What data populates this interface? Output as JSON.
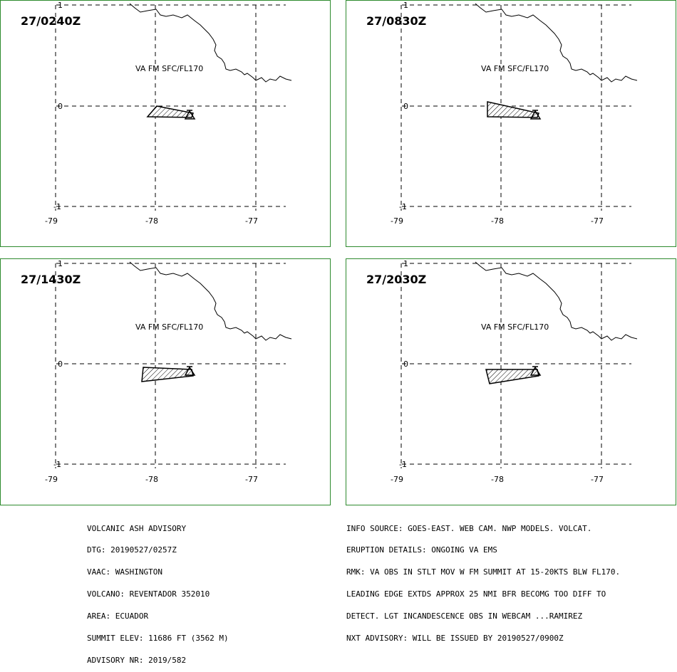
{
  "panels": [
    {
      "time": "27/0240Z",
      "ash_label": "VA FM SFC/FL170",
      "lat_labels": [
        "1",
        "0",
        "-1"
      ],
      "lon_labels": [
        "-79",
        "-78",
        "-77"
      ]
    },
    {
      "time": "27/0830Z",
      "ash_label": "VA FM SFC/FL170",
      "lat_labels": [
        "1",
        "0",
        "-1"
      ],
      "lon_labels": [
        "-79",
        "-78",
        "-77"
      ]
    },
    {
      "time": "27/1430Z",
      "ash_label": "VA FM SFC/FL170",
      "lat_labels": [
        "1",
        "0",
        "-1"
      ],
      "lon_labels": [
        "-79",
        "-78",
        "-77"
      ]
    },
    {
      "time": "27/2030Z",
      "ash_label": "VA FM SFC/FL170",
      "lat_labels": [
        "1",
        "0",
        "-1"
      ],
      "lon_labels": [
        "-79",
        "-78",
        "-77"
      ]
    }
  ],
  "advisory_left": [
    "VOLCANIC ASH ADVISORY",
    "DTG: 20190527/0257Z",
    "VAAC: WASHINGTON",
    "VOLCANO: REVENTADOR 352010",
    "AREA: ECUADOR",
    "SUMMIT ELEV: 11686 FT (3562 M)",
    "ADVISORY NR: 2019/582"
  ],
  "advisory_right": [
    "INFO SOURCE: GOES-EAST. WEB CAM. NWP MODELS. VOLCAT.",
    "ERUPTION DETAILS: ONGOING VA EMS",
    "RMK: VA OBS IN STLT MOV W FM SUMMIT AT 15-20KTS BLW FL170.",
    "LEADING EDGE EXTDS APPROX 25 NMI BFR BECOMG TOO DIFF TO",
    "DETECT. LGT INCANDESCENCE OBS IN WEBCAM ...RAMIREZ",
    "NXT ADVISORY: WILL BE ISSUED BY 20190527/0900Z"
  ],
  "colors": {
    "frame": "#2e8b2e",
    "ink": "#000000",
    "background": "#ffffff"
  },
  "icons": [
    "volcano-triangle-icon"
  ]
}
